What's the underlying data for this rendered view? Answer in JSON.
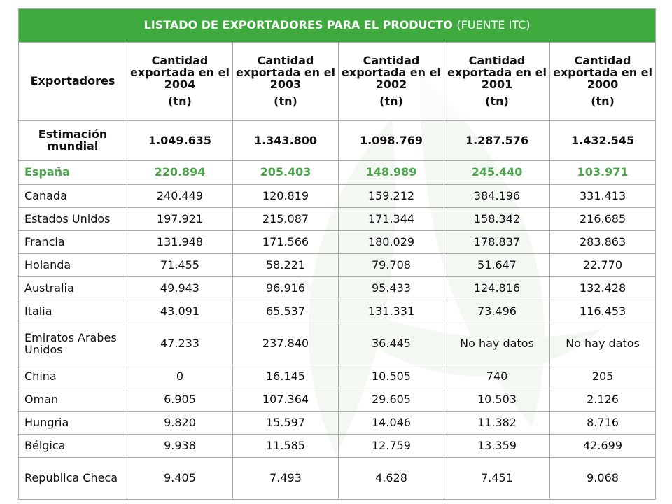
{
  "title": {
    "bold": "LISTADO DE EXPORTADORES PARA EL PRODUCTO",
    "normal": "(FUENTE ITC)"
  },
  "headers": {
    "exporters": "Exportadores",
    "years": [
      {
        "label": "Cantidad exportada en el 2004",
        "unit": "(tn)"
      },
      {
        "label": "Cantidad exportada en el 2003",
        "unit": "(tn)"
      },
      {
        "label": "Cantidad exportada en el 2002",
        "unit": "(tn)"
      },
      {
        "label": "Cantidad exportada en el 2001",
        "unit": "(tn)"
      },
      {
        "label": "Cantidad exportada en el 2000",
        "unit": "(tn)"
      }
    ]
  },
  "world": {
    "name": "Estimación mundial",
    "values": [
      "1.049.635",
      "1.343.800",
      "1.098.769",
      "1.287.576",
      "1.432.545"
    ]
  },
  "highlight": {
    "name": "España",
    "values": [
      "220.894",
      "205.403",
      "148.989",
      "245.440",
      "103.971"
    ],
    "color": "#4ca64c"
  },
  "rows": [
    {
      "name": "Canada",
      "values": [
        "240.449",
        "120.819",
        "159.212",
        "384.196",
        "331.413"
      ]
    },
    {
      "name": "Estados Unidos",
      "values": [
        "197.921",
        "215.087",
        "171.344",
        "158.342",
        "216.685"
      ]
    },
    {
      "name": "Francia",
      "values": [
        "131.948",
        "171.566",
        "180.029",
        "178.837",
        "283.863"
      ]
    },
    {
      "name": "Holanda",
      "values": [
        "71.455",
        "58.221",
        "79.708",
        "51.647",
        "22.770"
      ]
    },
    {
      "name": "Australia",
      "values": [
        "49.943",
        "96.916",
        "95.433",
        "124.816",
        "132.428"
      ]
    },
    {
      "name": "Italia",
      "values": [
        "43.091",
        "65.537",
        "131.331",
        "73.496",
        "116.453"
      ]
    },
    {
      "name": "Emiratos Arabes Unidos",
      "values": [
        "47.233",
        "237.840",
        "36.445",
        "No hay datos",
        "No hay datos"
      ]
    },
    {
      "name": "China",
      "values": [
        "0",
        "16.145",
        "10.505",
        "740",
        "205"
      ]
    },
    {
      "name": "Oman",
      "values": [
        "6.905",
        "107.364",
        "29.605",
        "10.503",
        "2.126"
      ]
    },
    {
      "name": "Hungria",
      "values": [
        "9.820",
        "15.597",
        "14.046",
        "11.382",
        "8.716"
      ]
    },
    {
      "name": "Bélgica",
      "values": [
        "9.938",
        "11.585",
        "12.759",
        "13.359",
        "42.699"
      ]
    },
    {
      "name": "Republica Checa",
      "values": [
        "9.405",
        "7.493",
        "4.628",
        "7.451",
        "9.068"
      ]
    }
  ],
  "colors": {
    "title_bg": "#3eaa3e",
    "title_text": "#ffffff",
    "border": "#a8a8a8"
  }
}
